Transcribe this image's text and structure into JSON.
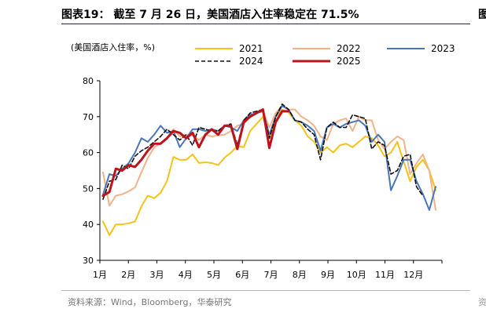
{
  "header": {
    "title": "图表19： 截至 7 月 26 日，美国酒店入住率稳定在 71.5%",
    "right_mark": "图"
  },
  "footer": {
    "source": "资料来源：Wind，Bloomberg，华泰研究",
    "right_mark": "资"
  },
  "chart_data": {
    "type": "line",
    "ylabel": "(美国酒店入住率，%)",
    "ylim": [
      30,
      80
    ],
    "yticks": [
      30,
      40,
      50,
      60,
      70,
      80
    ],
    "xticks": [
      "1月",
      "2月",
      "3月",
      "4月",
      "5月",
      "6月",
      "7月",
      "8月",
      "9月",
      "10月",
      "11月",
      "12月"
    ],
    "x_unit": "week of year",
    "legend_placement": "top-right",
    "grid": false,
    "series": [
      {
        "name": "2021",
        "color": "#f5c218",
        "dashed": false,
        "width": 2,
        "points": [
          [
            1,
            40.8
          ],
          [
            2,
            37.0
          ],
          [
            3,
            40.0
          ],
          [
            4,
            40.0
          ],
          [
            5,
            40.3
          ],
          [
            6,
            40.8
          ],
          [
            7,
            45.0
          ],
          [
            8,
            48.0
          ],
          [
            9,
            47.3
          ],
          [
            10,
            48.8
          ],
          [
            11,
            52.0
          ],
          [
            12,
            58.8
          ],
          [
            13,
            58.0
          ],
          [
            14,
            58.0
          ],
          [
            15,
            59.5
          ],
          [
            16,
            57.1
          ],
          [
            17,
            57.3
          ],
          [
            18,
            57.1
          ],
          [
            19,
            56.5
          ],
          [
            20,
            58.6
          ],
          [
            21,
            60.0
          ],
          [
            22,
            61.8
          ],
          [
            23,
            61.5
          ],
          [
            24,
            66.0
          ],
          [
            25,
            68.0
          ],
          [
            26,
            70.0
          ],
          [
            27,
            64.0
          ],
          [
            28,
            70.0
          ],
          [
            29,
            72.0
          ],
          [
            30,
            71.2
          ],
          [
            31,
            69.0
          ],
          [
            32,
            67.5
          ],
          [
            33,
            64.5
          ],
          [
            34,
            63.0
          ],
          [
            35,
            60.0
          ],
          [
            36,
            61.5
          ],
          [
            37,
            60.0
          ],
          [
            38,
            62.0
          ],
          [
            39,
            62.5
          ],
          [
            40,
            61.5
          ],
          [
            41,
            63.0
          ],
          [
            42,
            64.5
          ],
          [
            43,
            64.0
          ],
          [
            44,
            62.0
          ],
          [
            45,
            59.0
          ],
          [
            46,
            60.0
          ],
          [
            47,
            63.0
          ],
          [
            48,
            57.5
          ],
          [
            49,
            52.0
          ],
          [
            50,
            56.0
          ],
          [
            51,
            58.0
          ],
          [
            52,
            55.0
          ],
          [
            53,
            49.5
          ]
        ]
      },
      {
        "name": "2022",
        "color": "#f2b28a",
        "dashed": false,
        "width": 2,
        "points": [
          [
            1,
            54.5
          ],
          [
            2,
            45.2
          ],
          [
            3,
            48.0
          ],
          [
            4,
            48.4
          ],
          [
            5,
            49.2
          ],
          [
            6,
            50.3
          ],
          [
            7,
            54.5
          ],
          [
            8,
            58.5
          ],
          [
            9,
            61.5
          ],
          [
            10,
            62.5
          ],
          [
            11,
            64.0
          ],
          [
            12,
            66.5
          ],
          [
            13,
            64.5
          ],
          [
            14,
            65.0
          ],
          [
            15,
            64.8
          ],
          [
            16,
            63.5
          ],
          [
            17,
            65.0
          ],
          [
            18,
            64.5
          ],
          [
            19,
            64.8
          ],
          [
            20,
            65.0
          ],
          [
            21,
            66.0
          ],
          [
            22,
            67.5
          ],
          [
            23,
            68.0
          ],
          [
            24,
            70.0
          ],
          [
            25,
            71.0
          ],
          [
            26,
            71.5
          ],
          [
            27,
            67.0
          ],
          [
            28,
            71.0
          ],
          [
            29,
            73.0
          ],
          [
            30,
            72.0
          ],
          [
            31,
            72.0
          ],
          [
            32,
            70.0
          ],
          [
            33,
            69.0
          ],
          [
            34,
            67.5
          ],
          [
            35,
            64.5
          ],
          [
            36,
            63.5
          ],
          [
            37,
            68.0
          ],
          [
            38,
            69.0
          ],
          [
            39,
            69.5
          ],
          [
            40,
            66.0
          ],
          [
            41,
            70.0
          ],
          [
            42,
            69.0
          ],
          [
            43,
            69.0
          ],
          [
            44,
            63.5
          ],
          [
            45,
            61.0
          ],
          [
            46,
            63.0
          ],
          [
            47,
            64.5
          ],
          [
            48,
            63.5
          ],
          [
            49,
            54.0
          ],
          [
            50,
            57.0
          ],
          [
            51,
            59.5
          ],
          [
            52,
            55.0
          ],
          [
            53,
            44.0
          ]
        ]
      },
      {
        "name": "2023",
        "color": "#4a76b8",
        "dashed": false,
        "width": 2,
        "points": [
          [
            1,
            48.3
          ],
          [
            2,
            54.0
          ],
          [
            3,
            53.5
          ],
          [
            4,
            55.5
          ],
          [
            5,
            57.0
          ],
          [
            6,
            60.0
          ],
          [
            7,
            64.0
          ],
          [
            8,
            63.0
          ],
          [
            9,
            65.0
          ],
          [
            10,
            67.5
          ],
          [
            11,
            65.5
          ],
          [
            12,
            66.0
          ],
          [
            13,
            61.5
          ],
          [
            14,
            64.0
          ],
          [
            15,
            66.5
          ],
          [
            16,
            66.5
          ],
          [
            17,
            66.0
          ],
          [
            18,
            66.5
          ],
          [
            19,
            66.0
          ],
          [
            20,
            67.5
          ],
          [
            21,
            67.0
          ],
          [
            22,
            66.0
          ],
          [
            23,
            69.0
          ],
          [
            24,
            70.5
          ],
          [
            25,
            71.0
          ],
          [
            26,
            71.5
          ],
          [
            27,
            65.0
          ],
          [
            28,
            70.0
          ],
          [
            29,
            73.0
          ],
          [
            30,
            72.0
          ],
          [
            31,
            69.0
          ],
          [
            32,
            68.5
          ],
          [
            33,
            67.5
          ],
          [
            34,
            66.0
          ],
          [
            35,
            60.5
          ],
          [
            36,
            67.0
          ],
          [
            37,
            68.0
          ],
          [
            38,
            67.0
          ],
          [
            39,
            68.0
          ],
          [
            40,
            68.5
          ],
          [
            41,
            69.0
          ],
          [
            42,
            67.5
          ],
          [
            43,
            63.0
          ],
          [
            44,
            65.0
          ],
          [
            45,
            63.0
          ],
          [
            46,
            49.5
          ],
          [
            47,
            53.5
          ],
          [
            48,
            58.0
          ],
          [
            49,
            58.0
          ],
          [
            50,
            52.0
          ],
          [
            51,
            48.5
          ],
          [
            52,
            44.0
          ],
          [
            53,
            50.5
          ]
        ]
      },
      {
        "name": "2024",
        "color": "#111111",
        "dashed": true,
        "width": 1.6,
        "points": [
          [
            1,
            47.0
          ],
          [
            2,
            52.0
          ],
          [
            3,
            52.5
          ],
          [
            4,
            56.5
          ],
          [
            5,
            55.5
          ],
          [
            6,
            59.0
          ],
          [
            7,
            60.5
          ],
          [
            8,
            61.5
          ],
          [
            9,
            63.0
          ],
          [
            10,
            64.5
          ],
          [
            11,
            66.5
          ],
          [
            12,
            65.0
          ],
          [
            13,
            63.5
          ],
          [
            14,
            65.0
          ],
          [
            15,
            62.0
          ],
          [
            16,
            67.0
          ],
          [
            17,
            66.5
          ],
          [
            18,
            66.0
          ],
          [
            19,
            66.0
          ],
          [
            20,
            67.5
          ],
          [
            21,
            68.0
          ],
          [
            22,
            62.0
          ],
          [
            23,
            69.0
          ],
          [
            24,
            71.0
          ],
          [
            25,
            71.5
          ],
          [
            26,
            72.0
          ],
          [
            27,
            64.0
          ],
          [
            28,
            70.0
          ],
          [
            29,
            73.5
          ],
          [
            30,
            72.0
          ],
          [
            31,
            69.0
          ],
          [
            32,
            68.5
          ],
          [
            33,
            66.5
          ],
          [
            34,
            65.0
          ],
          [
            35,
            58.0
          ],
          [
            36,
            67.0
          ],
          [
            37,
            68.5
          ],
          [
            38,
            67.0
          ],
          [
            39,
            67.0
          ],
          [
            40,
            70.5
          ],
          [
            41,
            70.0
          ],
          [
            42,
            69.5
          ],
          [
            43,
            61.0
          ],
          [
            44,
            63.0
          ],
          [
            45,
            62.0
          ],
          [
            46,
            54.0
          ],
          [
            47,
            55.0
          ],
          [
            48,
            59.0
          ],
          [
            49,
            59.5
          ],
          [
            50,
            50.5
          ],
          [
            51,
            48.0
          ]
        ]
      },
      {
        "name": "2025",
        "color": "#c0121a",
        "dashed": false,
        "width": 3,
        "points": [
          [
            1,
            48.0
          ],
          [
            2,
            49.0
          ],
          [
            3,
            55.5
          ],
          [
            4,
            55.0
          ],
          [
            5,
            56.5
          ],
          [
            6,
            56.0
          ],
          [
            7,
            58.0
          ],
          [
            8,
            60.5
          ],
          [
            9,
            62.5
          ],
          [
            10,
            62.5
          ],
          [
            11,
            64.0
          ],
          [
            12,
            66.0
          ],
          [
            13,
            65.5
          ],
          [
            14,
            64.0
          ],
          [
            15,
            65.5
          ],
          [
            16,
            61.5
          ],
          [
            17,
            65.0
          ],
          [
            18,
            66.5
          ],
          [
            19,
            65.0
          ],
          [
            20,
            67.5
          ],
          [
            21,
            67.5
          ],
          [
            22,
            61.0
          ],
          [
            23,
            68.5
          ],
          [
            24,
            70.0
          ],
          [
            25,
            71.0
          ],
          [
            26,
            72.0
          ],
          [
            27,
            61.3
          ],
          [
            28,
            68.5
          ],
          [
            29,
            71.5
          ],
          [
            30,
            71.5
          ]
        ]
      }
    ]
  }
}
